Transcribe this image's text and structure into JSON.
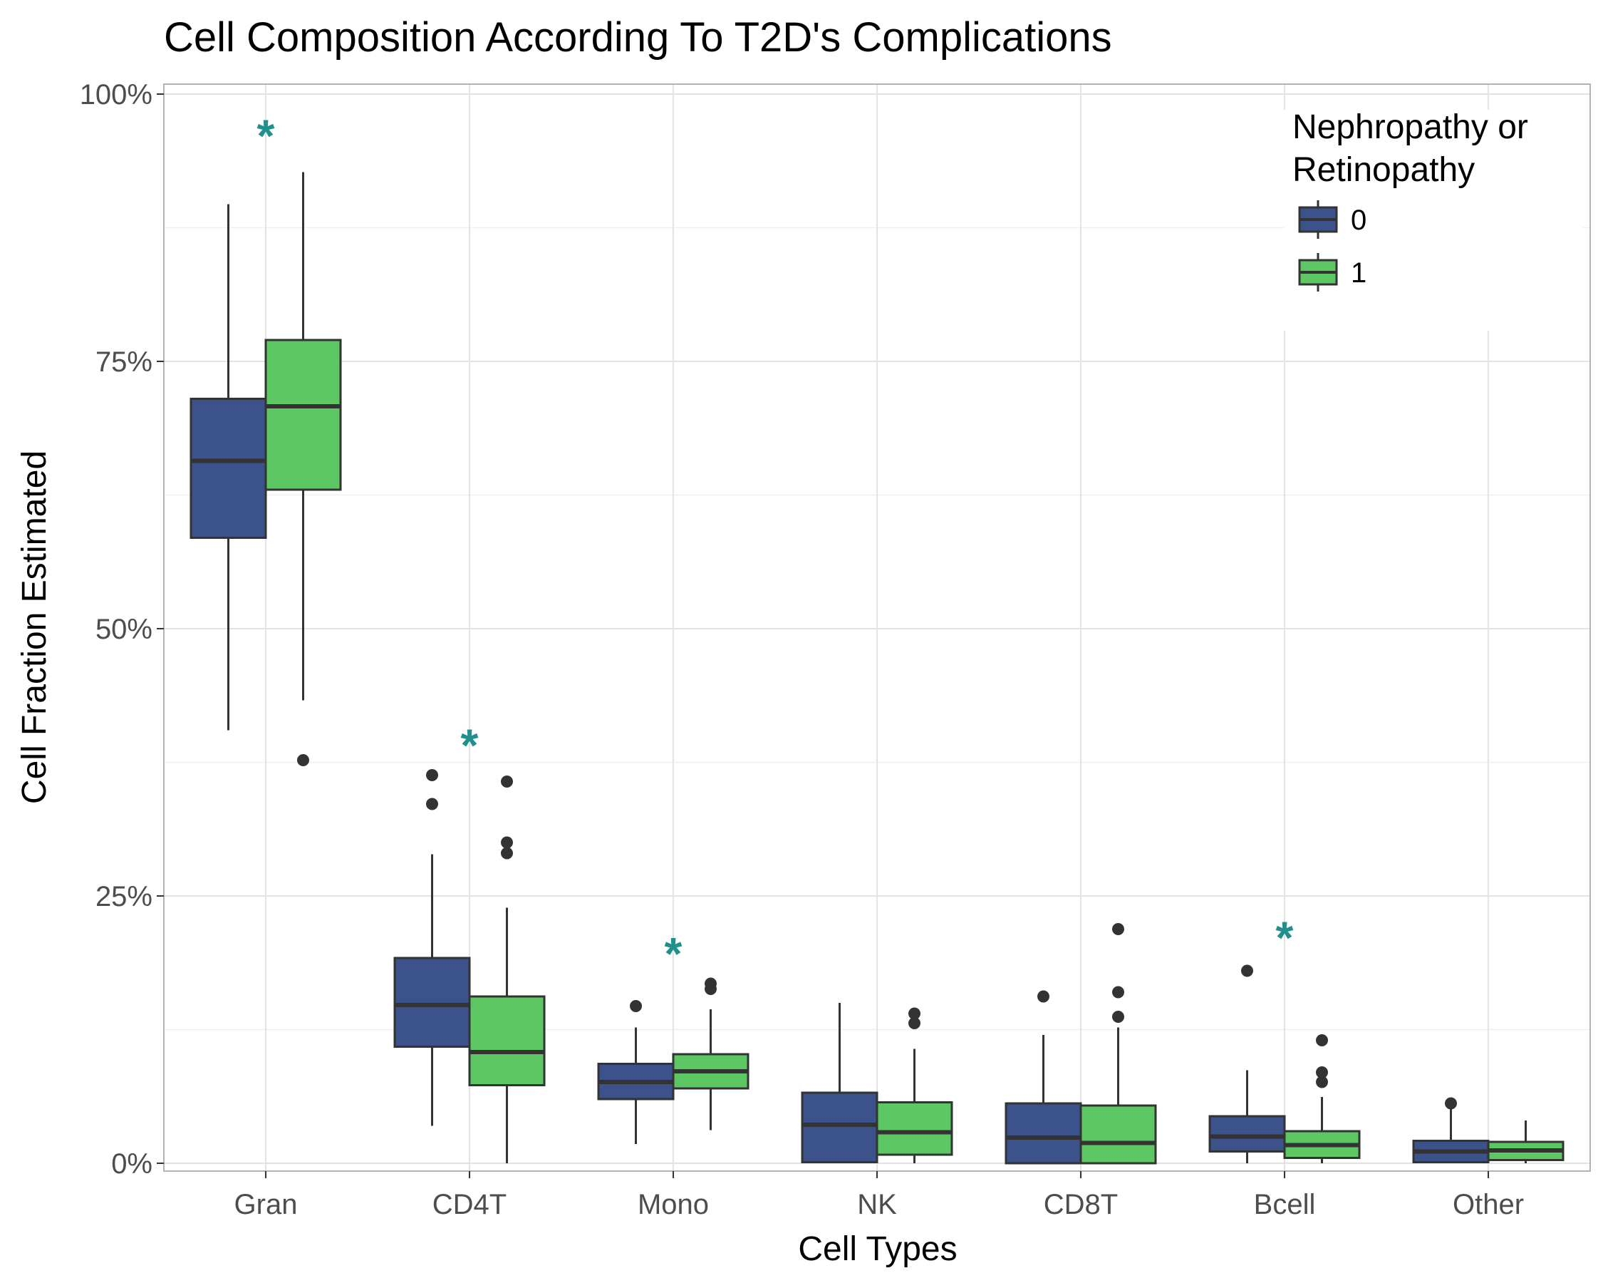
{
  "chart_data": {
    "type": "box",
    "title": "Cell Composition According To T2D's Complications",
    "xlabel": "Cell Types",
    "ylabel": "Cell Fraction Estimated",
    "ylim": [
      0,
      1
    ],
    "y_ticks": [
      {
        "value": 0,
        "label": "0%"
      },
      {
        "value": 0.25,
        "label": "25%"
      },
      {
        "value": 0.5,
        "label": "50%"
      },
      {
        "value": 0.75,
        "label": "75%"
      },
      {
        "value": 1.0,
        "label": "100%"
      }
    ],
    "grid": true,
    "legend": {
      "title_lines": [
        "Nephropathy or",
        "Retinopathy"
      ],
      "placement": "top-right",
      "entries": [
        {
          "label": "0",
          "color": "#3B528B"
        },
        {
          "label": "1",
          "color": "#5DC863"
        }
      ]
    },
    "categories": [
      "Gran",
      "CD4T",
      "Mono",
      "NK",
      "CD8T",
      "Bcell",
      "Other"
    ],
    "significance_marker": "*",
    "significance_color": "#21908C",
    "significant": [
      {
        "category": "Gran",
        "y": 0.965
      },
      {
        "category": "CD4T",
        "y": 0.395
      },
      {
        "category": "Mono",
        "y": 0.2
      },
      {
        "category": "Bcell",
        "y": 0.215
      }
    ],
    "series": [
      {
        "name": "0",
        "color": "#3B528B",
        "boxes": [
          {
            "category": "Gran",
            "lower_whisker": 0.405,
            "q1": 0.585,
            "median": 0.657,
            "q3": 0.715,
            "upper_whisker": 0.897,
            "outliers": []
          },
          {
            "category": "CD4T",
            "lower_whisker": 0.035,
            "q1": 0.109,
            "median": 0.148,
            "q3": 0.192,
            "upper_whisker": 0.289,
            "outliers": [
              0.336,
              0.363
            ]
          },
          {
            "category": "Mono",
            "lower_whisker": 0.018,
            "q1": 0.06,
            "median": 0.076,
            "q3": 0.093,
            "upper_whisker": 0.127,
            "outliers": [
              0.147
            ]
          },
          {
            "category": "NK",
            "lower_whisker": 0.0,
            "q1": 0.001,
            "median": 0.036,
            "q3": 0.066,
            "upper_whisker": 0.15,
            "outliers": []
          },
          {
            "category": "CD8T",
            "lower_whisker": 0.0,
            "q1": 0.0,
            "median": 0.024,
            "q3": 0.056,
            "upper_whisker": 0.12,
            "outliers": [
              0.156
            ]
          },
          {
            "category": "Bcell",
            "lower_whisker": 0.0,
            "q1": 0.011,
            "median": 0.025,
            "q3": 0.044,
            "upper_whisker": 0.087,
            "outliers": [
              0.18
            ]
          },
          {
            "category": "Other",
            "lower_whisker": 0.0,
            "q1": 0.001,
            "median": 0.011,
            "q3": 0.021,
            "upper_whisker": 0.054,
            "outliers": [
              0.056
            ]
          }
        ]
      },
      {
        "name": "1",
        "color": "#5DC863",
        "boxes": [
          {
            "category": "Gran",
            "lower_whisker": 0.433,
            "q1": 0.63,
            "median": 0.708,
            "q3": 0.77,
            "upper_whisker": 0.927,
            "outliers": [
              0.377
            ]
          },
          {
            "category": "CD4T",
            "lower_whisker": 0.0,
            "q1": 0.073,
            "median": 0.104,
            "q3": 0.156,
            "upper_whisker": 0.239,
            "outliers": [
              0.29,
              0.3,
              0.357
            ]
          },
          {
            "category": "Mono",
            "lower_whisker": 0.031,
            "q1": 0.07,
            "median": 0.086,
            "q3": 0.102,
            "upper_whisker": 0.144,
            "outliers": [
              0.163,
              0.168
            ]
          },
          {
            "category": "NK",
            "lower_whisker": 0.0,
            "q1": 0.008,
            "median": 0.029,
            "q3": 0.057,
            "upper_whisker": 0.107,
            "outliers": [
              0.131,
              0.14
            ]
          },
          {
            "category": "CD8T",
            "lower_whisker": 0.0,
            "q1": 0.0,
            "median": 0.019,
            "q3": 0.054,
            "upper_whisker": 0.127,
            "outliers": [
              0.137,
              0.16,
              0.219
            ]
          },
          {
            "category": "Bcell",
            "lower_whisker": 0.0,
            "q1": 0.005,
            "median": 0.017,
            "q3": 0.03,
            "upper_whisker": 0.062,
            "outliers": [
              0.076,
              0.085,
              0.115
            ]
          },
          {
            "category": "Other",
            "lower_whisker": 0.0,
            "q1": 0.003,
            "median": 0.012,
            "q3": 0.02,
            "upper_whisker": 0.04,
            "outliers": []
          }
        ]
      }
    ]
  }
}
